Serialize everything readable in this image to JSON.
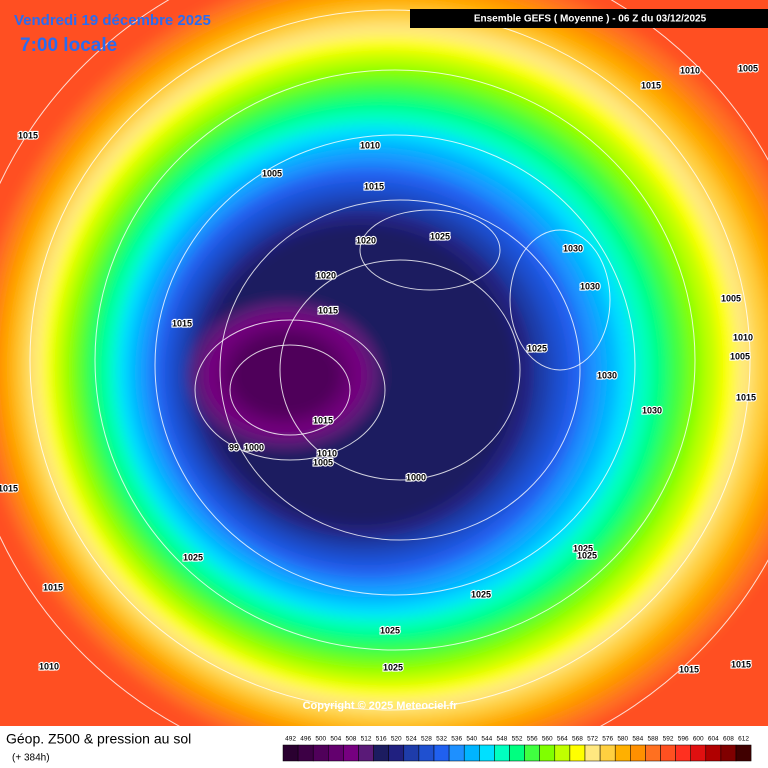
{
  "header": {
    "date": "Vendredi 19 décembre 2025",
    "time": "7:00 locale",
    "model": "Ensemble GEFS  ( Moyenne )  - 06 Z du 03/12/2025"
  },
  "map": {
    "isobar_labels": [
      1015,
      1010,
      1005,
      1015,
      1020,
      1025,
      1030,
      1030,
      1020,
      1015,
      1015,
      1025,
      1030,
      1030,
      1015,
      1010,
      1005,
      99,
      1000,
      1000,
      1010,
      1005,
      1015,
      1005,
      1010,
      1005,
      1015,
      1015,
      1025,
      1015,
      1010,
      1025,
      1025,
      1025,
      1025,
      1025,
      1015,
      1015
    ],
    "copyright": "Copyright © 2025 Meteociel.fr"
  },
  "footer": {
    "title": "Géop. Z500 & pression au sol",
    "lead": "(+ 384h)"
  },
  "scale": {
    "levels": [
      492,
      496,
      500,
      504,
      508,
      512,
      516,
      520,
      524,
      528,
      532,
      536,
      540,
      544,
      548,
      552,
      556,
      560,
      564,
      568,
      572,
      576,
      580,
      584,
      588,
      592,
      596,
      600,
      604,
      608,
      612
    ],
    "colors": [
      "#2a0030",
      "#3d0045",
      "#50005a",
      "#63006e",
      "#760080",
      "#5a1a78",
      "#1c1c60",
      "#202080",
      "#1e3caa",
      "#1f50d0",
      "#2060f0",
      "#1e90ff",
      "#00b4ff",
      "#00e0ff",
      "#00ffc0",
      "#00ff80",
      "#40ff40",
      "#80ff00",
      "#c0ff00",
      "#ffff00",
      "#ffe880",
      "#ffd040",
      "#ffb000",
      "#ff9000",
      "#ff7020",
      "#ff5020",
      "#ff3020",
      "#e01010",
      "#b00000",
      "#800000",
      "#400000"
    ]
  }
}
